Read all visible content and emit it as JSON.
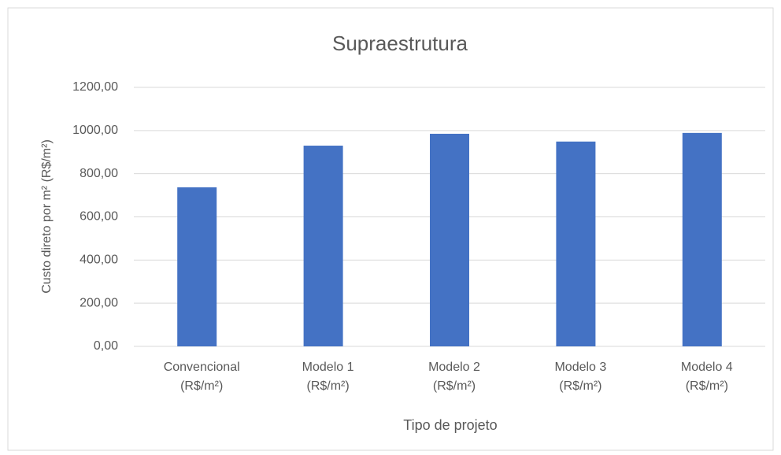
{
  "chart_data": {
    "type": "bar",
    "title": "Supraestrutura",
    "x_label": "Tipo de projeto",
    "y_label": "Custo direto por m² (R$/m²)",
    "categories": [
      "Convencional (R$/m²)",
      "Modelo 1 (R$/m²)",
      "Modelo 2 (R$/m²)",
      "Modelo 3 (R$/m²)",
      "Modelo 4 (R$/m²)"
    ],
    "values": [
      737,
      930,
      985,
      949,
      989
    ],
    "color": "#4472c4",
    "ylim": [
      0,
      1200
    ],
    "yticks": [
      {
        "value": 0,
        "label": "0,00"
      },
      {
        "value": 200,
        "label": "200,00"
      },
      {
        "value": 400,
        "label": "400,00"
      },
      {
        "value": 600,
        "label": "600,00"
      },
      {
        "value": 800,
        "label": "800,00"
      },
      {
        "value": 1000,
        "label": "1000,00"
      },
      {
        "value": 1200,
        "label": "1200,00"
      }
    ],
    "grid": true
  }
}
